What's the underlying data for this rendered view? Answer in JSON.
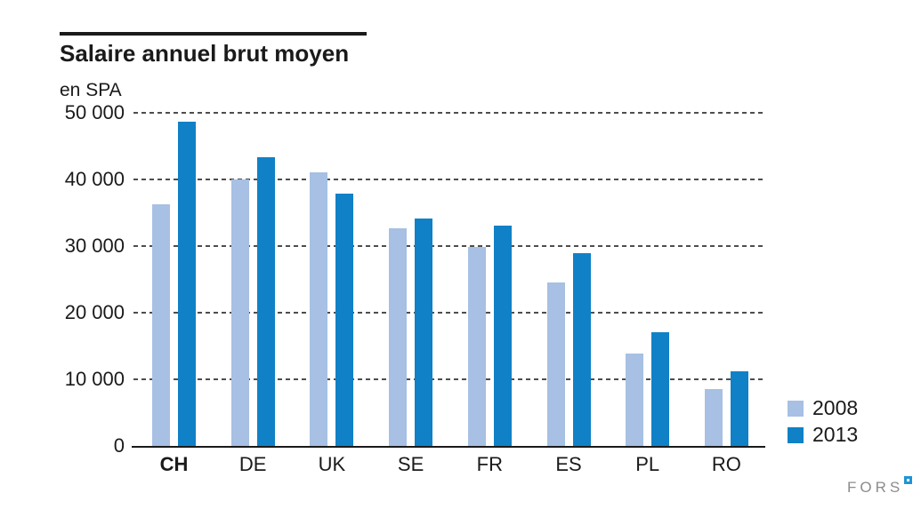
{
  "header": {
    "title": "Salaire annuel brut moyen",
    "unit_label": "en SPA"
  },
  "chart_data": {
    "type": "bar",
    "title": "Salaire annuel brut moyen",
    "xlabel": "",
    "ylabel": "en SPA",
    "categories": [
      "CH",
      "DE",
      "UK",
      "SE",
      "FR",
      "ES",
      "PL",
      "RO"
    ],
    "highlighted_category": "CH",
    "series": [
      {
        "name": "2008",
        "color": "#a7c0e3",
        "values": [
          36300,
          40000,
          41100,
          32700,
          29900,
          24500,
          13900,
          8500
        ]
      },
      {
        "name": "2013",
        "color": "#1081c6",
        "values": [
          48600,
          43300,
          37900,
          34100,
          33100,
          28900,
          17100,
          11200
        ]
      }
    ],
    "ylim": [
      0,
      50000
    ],
    "ytick_interval": 10000,
    "ytick_labels": [
      "0",
      "10 000",
      "20 000",
      "30 000",
      "40 000",
      "50 000"
    ],
    "grid": "horizontal-dashed",
    "gridline_color": "#4d4d4d",
    "legend_position": "bottom-right"
  },
  "legend": {
    "items": [
      {
        "label": "2008",
        "color": "#a7c0e3"
      },
      {
        "label": "2013",
        "color": "#1081c6"
      }
    ]
  },
  "branding": {
    "logo_text": "FORS",
    "logo_text_color": "#8c8c8c",
    "logo_square_color": "#1e95d4"
  }
}
